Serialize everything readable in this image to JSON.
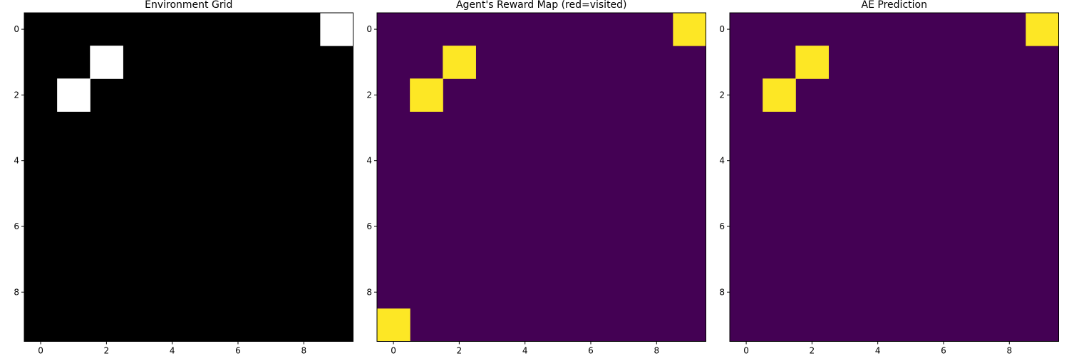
{
  "chart_data": [
    {
      "type": "heatmap",
      "title": "Environment Grid",
      "colormap": "gray",
      "rows": 10,
      "cols": 10,
      "grid": false,
      "xticks": [
        0,
        2,
        4,
        6,
        8
      ],
      "yticks": [
        0,
        2,
        4,
        6,
        8
      ],
      "xlim": [
        -0.5,
        9.5
      ],
      "ylim": [
        9.5,
        -0.5
      ],
      "active_cells": [
        [
          0,
          9
        ],
        [
          1,
          2
        ],
        [
          2,
          1
        ]
      ],
      "colors": {
        "low": "#000000",
        "high": "#ffffff"
      }
    },
    {
      "type": "heatmap",
      "title": "Agent's Reward Map (red=visited)",
      "colormap": "viridis",
      "rows": 10,
      "cols": 10,
      "grid": false,
      "xticks": [
        0,
        2,
        4,
        6,
        8
      ],
      "yticks": [
        0,
        2,
        4,
        6,
        8
      ],
      "xlim": [
        -0.5,
        9.5
      ],
      "ylim": [
        9.5,
        -0.5
      ],
      "active_cells": [
        [
          0,
          9
        ],
        [
          1,
          2
        ],
        [
          2,
          1
        ],
        [
          9,
          0
        ]
      ],
      "colors": {
        "low": "#440154",
        "high": "#fde725"
      }
    },
    {
      "type": "heatmap",
      "title": "AE Prediction",
      "colormap": "viridis",
      "rows": 10,
      "cols": 10,
      "grid": false,
      "xticks": [
        0,
        2,
        4,
        6,
        8
      ],
      "yticks": [
        0,
        2,
        4,
        6,
        8
      ],
      "xlim": [
        -0.5,
        9.5
      ],
      "ylim": [
        9.5,
        -0.5
      ],
      "active_cells": [
        [
          0,
          9
        ],
        [
          1,
          2
        ],
        [
          2,
          1
        ]
      ],
      "colors": {
        "low": "#440154",
        "high": "#fde725"
      }
    }
  ]
}
